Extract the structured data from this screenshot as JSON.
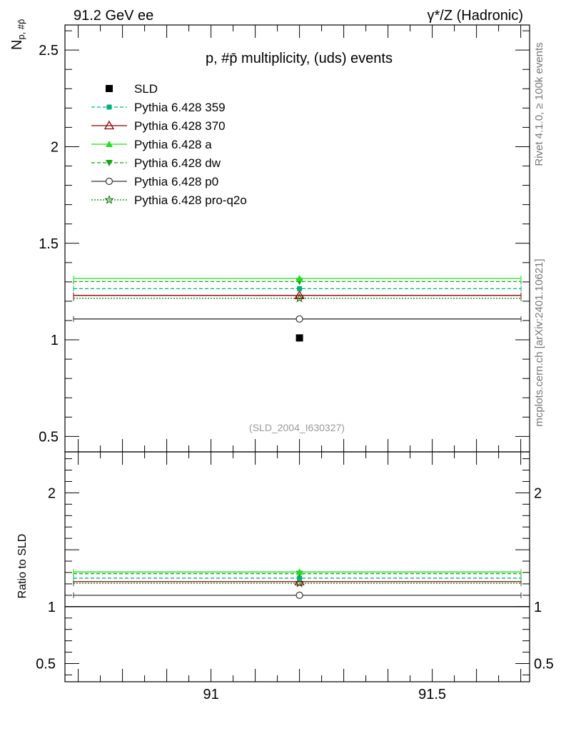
{
  "header": {
    "left": "91.2 GeV ee",
    "right": "γ*/Z (Hadronic)"
  },
  "side_text": {
    "rivet": "Rivet 4.1.0, ≥ 100k events",
    "mcplots": "mcplots.cern.ch [arXiv:2401.10621]"
  },
  "chart_data": {
    "type": "scatter",
    "title": "p, #p̄ multiplicity, (uds) events",
    "analysis_id": "(SLD_2004_I630327)",
    "x_range": [
      90.67,
      91.72
    ],
    "x_ticks": [
      {
        "value": 91,
        "label": "91"
      },
      {
        "value": 91.5,
        "label": "91.5"
      }
    ],
    "main": {
      "ylabel": "N",
      "ylabel_sub": "p, #p̄",
      "ylim": [
        0.42,
        2.63
      ],
      "y_ticks": [
        {
          "value": 0.5,
          "label": "0.5"
        },
        {
          "value": 1,
          "label": "1"
        },
        {
          "value": 1.5,
          "label": "1.5"
        },
        {
          "value": 2,
          "label": "2"
        },
        {
          "value": 2.5,
          "label": "2.5"
        }
      ]
    },
    "ratio": {
      "ylabel": "Ratio to SLD",
      "ylim": [
        0.34,
        2.36
      ],
      "y_ticks": [
        {
          "value": 0.5,
          "label": "0.5"
        },
        {
          "value": 1,
          "label": "1"
        },
        {
          "value": 2,
          "label": "2"
        }
      ]
    },
    "data": {
      "name": "SLD",
      "x": 91.2,
      "y": 1.01,
      "marker": "square",
      "color": "#000000"
    },
    "series": [
      {
        "name": "Pythia 6.428 359",
        "y": 1.265,
        "ratio": 1.25,
        "color": "#00b07a",
        "dash": "5,3",
        "marker": "smallsquare"
      },
      {
        "name": "Pythia 6.428 370",
        "y": 1.23,
        "ratio": 1.22,
        "color": "#8b0000",
        "dash": "",
        "marker": "triangle-open"
      },
      {
        "name": "Pythia 6.428 a",
        "y": 1.318,
        "ratio": 1.305,
        "color": "#22dd22",
        "dash": "",
        "marker": "triangle"
      },
      {
        "name": "Pythia 6.428 dw",
        "y": 1.302,
        "ratio": 1.29,
        "color": "#12a512",
        "dash": "5,3",
        "marker": "triangle-down"
      },
      {
        "name": "Pythia 6.428 p0",
        "y": 1.108,
        "ratio": 1.1,
        "color": "#333333",
        "dash": "",
        "marker": "circle-open"
      },
      {
        "name": "Pythia 6.428 pro-q2o",
        "y": 1.215,
        "ratio": 1.205,
        "color": "#0a7a0a",
        "dash": "2,2",
        "marker": "star-open"
      }
    ]
  }
}
